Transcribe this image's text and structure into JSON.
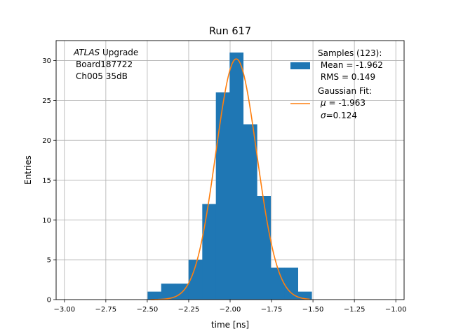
{
  "chart_data": {
    "type": "histogram",
    "title": "Run 617",
    "xlabel": "time [ns]",
    "ylabel": "Entries",
    "xlim": [
      -3.05,
      -0.95
    ],
    "ylim": [
      0,
      32.5
    ],
    "xticks": [
      -3.0,
      -2.75,
      -2.5,
      -2.25,
      -2.0,
      -1.75,
      -1.5,
      -1.25,
      -1.0
    ],
    "xtick_labels": [
      "−3.00",
      "−2.75",
      "−2.50",
      "−2.25",
      "−2.00",
      "−1.75",
      "−1.50",
      "−1.25",
      "−1.00"
    ],
    "yticks": [
      0,
      5,
      10,
      15,
      20,
      25,
      30
    ],
    "ytick_labels": [
      "0",
      "5",
      "10",
      "15",
      "20",
      "25",
      "30"
    ],
    "grid": true,
    "annotation": {
      "line1_italic": "ATLAS",
      "line1_rest": " Upgrade",
      "line2": "Board187722",
      "line3": "Ch005 35dB"
    },
    "histogram": {
      "bin_edges": [
        -2.498,
        -2.416,
        -2.333,
        -2.251,
        -2.168,
        -2.086,
        -2.003,
        -1.921,
        -1.838,
        -1.756,
        -1.673,
        -1.591,
        -1.508
      ],
      "counts": [
        1,
        2,
        2,
        5,
        12,
        26,
        31,
        22,
        13,
        4,
        4,
        1
      ],
      "color": "#1f77b4"
    },
    "fit": {
      "mu": -1.963,
      "sigma": 0.124,
      "amplitude": 30.2,
      "x_range": [
        -2.48,
        -1.52
      ],
      "color": "#ff7f0e"
    },
    "legend": {
      "placement": "top-right",
      "samples_label_1": "Samples (123):",
      "samples_label_2": " Mean = -1.962",
      "samples_label_3": " RMS = 0.149",
      "fit_label_1": "Gaussian Fit:",
      "fit_mu_symbol": "μ",
      "fit_mu_value": " = -1.963",
      "fit_sigma_symbol": "σ",
      "fit_sigma_value": "=0.124"
    }
  }
}
